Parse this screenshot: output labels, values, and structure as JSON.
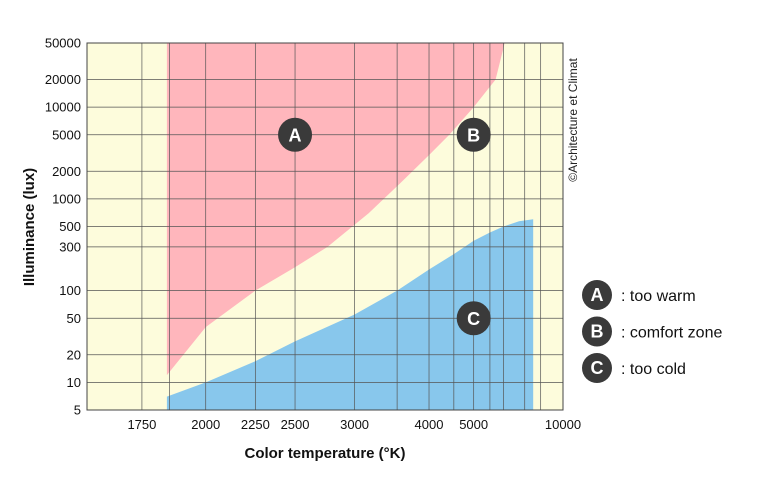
{
  "chart_data": {
    "type": "area",
    "title": "",
    "xlabel": "Color temperature (°K)",
    "ylabel": "Illuminance (lux)",
    "x_scale": "reciprocal",
    "y_scale": "log",
    "xlim": [
      1580,
      10000
    ],
    "ylim": [
      5,
      50000
    ],
    "grid": true,
    "x_ticks": [
      {
        "value": 1750,
        "label": "1750"
      },
      {
        "value": 2000,
        "label": "2000"
      },
      {
        "value": 2250,
        "label": "2250"
      },
      {
        "value": 2500,
        "label": "2500"
      },
      {
        "value": 3000,
        "label": "3000"
      },
      {
        "value": 4000,
        "label": "4000"
      },
      {
        "value": 5000,
        "label": "5000"
      },
      {
        "value": 10000,
        "label": "10000"
      }
    ],
    "x_grid": [
      1580,
      1750,
      1850,
      2000,
      2250,
      2500,
      3000,
      3500,
      4000,
      4500,
      5000,
      5500,
      6000,
      7000,
      8000,
      10000
    ],
    "y_ticks": [
      {
        "value": 5,
        "label": "5"
      },
      {
        "value": 10,
        "label": "10"
      },
      {
        "value": 20,
        "label": "20"
      },
      {
        "value": 50,
        "label": "50"
      },
      {
        "value": 100,
        "label": "100"
      },
      {
        "value": 300,
        "label": "300"
      },
      {
        "value": 500,
        "label": "500"
      },
      {
        "value": 1000,
        "label": "1000"
      },
      {
        "value": 2000,
        "label": "2000"
      },
      {
        "value": 5000,
        "label": "5000"
      },
      {
        "value": 10000,
        "label": "10000"
      },
      {
        "value": 20000,
        "label": "20000"
      },
      {
        "value": 50000,
        "label": "50000"
      }
    ],
    "zones": [
      {
        "id": "A",
        "legend": ": too warm",
        "color": "#ffb6bc",
        "label_at": {
          "x": 2500,
          "y": 5000
        },
        "polygon": [
          [
            1840,
            50000
          ],
          [
            6050,
            50000
          ],
          [
            5700,
            20000
          ],
          [
            5000,
            10000
          ],
          [
            4400,
            5000
          ],
          [
            4000,
            3000
          ],
          [
            3550,
            1500
          ],
          [
            3150,
            700
          ],
          [
            2750,
            300
          ],
          [
            2500,
            180
          ],
          [
            2250,
            100
          ],
          [
            2000,
            40
          ],
          [
            1840,
            12
          ]
        ]
      },
      {
        "id": "B",
        "legend": ": comfort zone",
        "color": "#fdfcdc",
        "label_at": {
          "x": 5000,
          "y": 5000
        }
      },
      {
        "id": "C",
        "legend": ": too cold",
        "color": "#88c7ec",
        "label_at": {
          "x": 5000,
          "y": 50
        },
        "polygon": [
          [
            1840,
            5
          ],
          [
            1840,
            7
          ],
          [
            2000,
            10
          ],
          [
            2250,
            17
          ],
          [
            2500,
            28
          ],
          [
            3000,
            55
          ],
          [
            3500,
            100
          ],
          [
            4000,
            170
          ],
          [
            4500,
            250
          ],
          [
            5000,
            350
          ],
          [
            5500,
            430
          ],
          [
            6000,
            500
          ],
          [
            6700,
            570
          ],
          [
            7500,
            600
          ],
          [
            7500,
            5
          ]
        ]
      }
    ],
    "background_color": "#fdfcdc",
    "credit": "©Architecture et Climat"
  }
}
